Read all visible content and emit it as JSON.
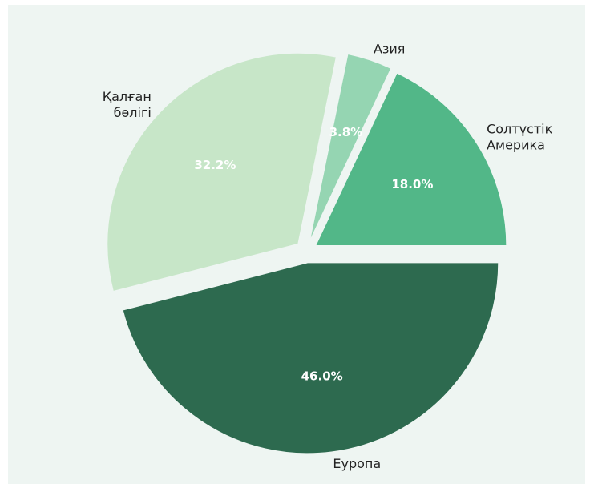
{
  "chart_data": {
    "type": "pie",
    "start_angle_deg": 0,
    "direction": "counterclockwise",
    "explode": true,
    "slices": [
      {
        "label": "Солтүстік Америка",
        "label_lines": [
          "Солтүстік",
          "Америка"
        ],
        "value": 18.0,
        "pct_label": "18.0%",
        "color": "#52b788"
      },
      {
        "label": "Азия",
        "label_lines": [
          "Азия"
        ],
        "value": 3.8,
        "pct_label": "3.8%",
        "color": "#95d5b2"
      },
      {
        "label": "Қалған бөлігі",
        "label_lines": [
          "Қалған",
          "бөлігі"
        ],
        "value": 32.2,
        "pct_label": "32.2%",
        "color": "#c7e6c8"
      },
      {
        "label": "Еуропа",
        "label_lines": [
          "Еуропа"
        ],
        "value": 46.0,
        "pct_label": "46.0%",
        "color": "#2d6a4f"
      }
    ]
  },
  "colors": {
    "background": "#eef5f2",
    "page": "#ffffff",
    "label_text": "#222222",
    "pct_text": "#ffffff"
  }
}
